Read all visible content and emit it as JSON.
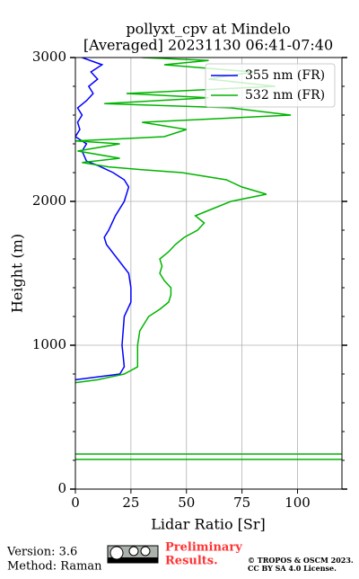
{
  "chart_data": {
    "type": "line",
    "title": [
      "pollyxt_cpv at Mindelo",
      "[Averaged] 20231130 06:41-07:40"
    ],
    "x_label": "Lidar Ratio [Sr]",
    "y_label": "Height (m)",
    "xlim": [
      0,
      120
    ],
    "ylim": [
      0,
      3000
    ],
    "xticks": [
      0,
      25,
      50,
      75,
      100
    ],
    "yticks": [
      0,
      1000,
      2000,
      3000
    ],
    "grid": true,
    "legend": "upper right",
    "series": [
      {
        "name": "355 nm (FR)",
        "color": "#0000ff",
        "x": [
          0,
          20,
          22,
          21,
          22,
          25,
          25,
          24,
          19,
          14,
          13,
          15,
          18,
          22,
          23,
          24,
          22,
          17,
          10,
          5,
          3,
          5,
          0,
          2,
          1,
          3,
          1,
          5,
          8,
          6,
          10,
          7,
          12,
          3
        ],
        "values": [
          760,
          800,
          850,
          1000,
          1200,
          1300,
          1400,
          1500,
          1600,
          1700,
          1750,
          1800,
          1900,
          2000,
          2050,
          2100,
          2150,
          2200,
          2250,
          2280,
          2350,
          2400,
          2450,
          2500,
          2550,
          2600,
          2650,
          2700,
          2750,
          2800,
          2850,
          2900,
          2950,
          3000
        ]
      },
      {
        "name": "532 nm (FR)",
        "color": "#00b400",
        "x": [
          0,
          120,
          null,
          0,
          120,
          null,
          0,
          10,
          22,
          28,
          28,
          28,
          29,
          33,
          38,
          42,
          43,
          43,
          40,
          38,
          39,
          38,
          42,
          45,
          49,
          55,
          58,
          54,
          62,
          70,
          86,
          75,
          68,
          48,
          30,
          15,
          3,
          20,
          1,
          20,
          0,
          40,
          50,
          30,
          97,
          70,
          13,
          60,
          23,
          90,
          60,
          80,
          40,
          60,
          30
        ],
        "values": [
          206,
          206,
          null,
          244,
          244,
          null,
          740,
          760,
          800,
          850,
          900,
          1000,
          1100,
          1200,
          1250,
          1300,
          1350,
          1400,
          1450,
          1500,
          1550,
          1600,
          1650,
          1700,
          1750,
          1800,
          1850,
          1900,
          1950,
          2000,
          2050,
          2100,
          2150,
          2200,
          2220,
          2240,
          2270,
          2300,
          2350,
          2400,
          2420,
          2450,
          2500,
          2550,
          2600,
          2650,
          2680,
          2720,
          2750,
          2800,
          2850,
          2900,
          2950,
          2980,
          3000
        ]
      }
    ]
  },
  "footer": {
    "version": "Version: 3.6",
    "method": "Method: Raman",
    "preliminary": [
      "Preliminary",
      "Results."
    ],
    "copyright": [
      "© TROPOS & OSCM 2023.",
      "CC BY SA 4.0 License."
    ]
  }
}
